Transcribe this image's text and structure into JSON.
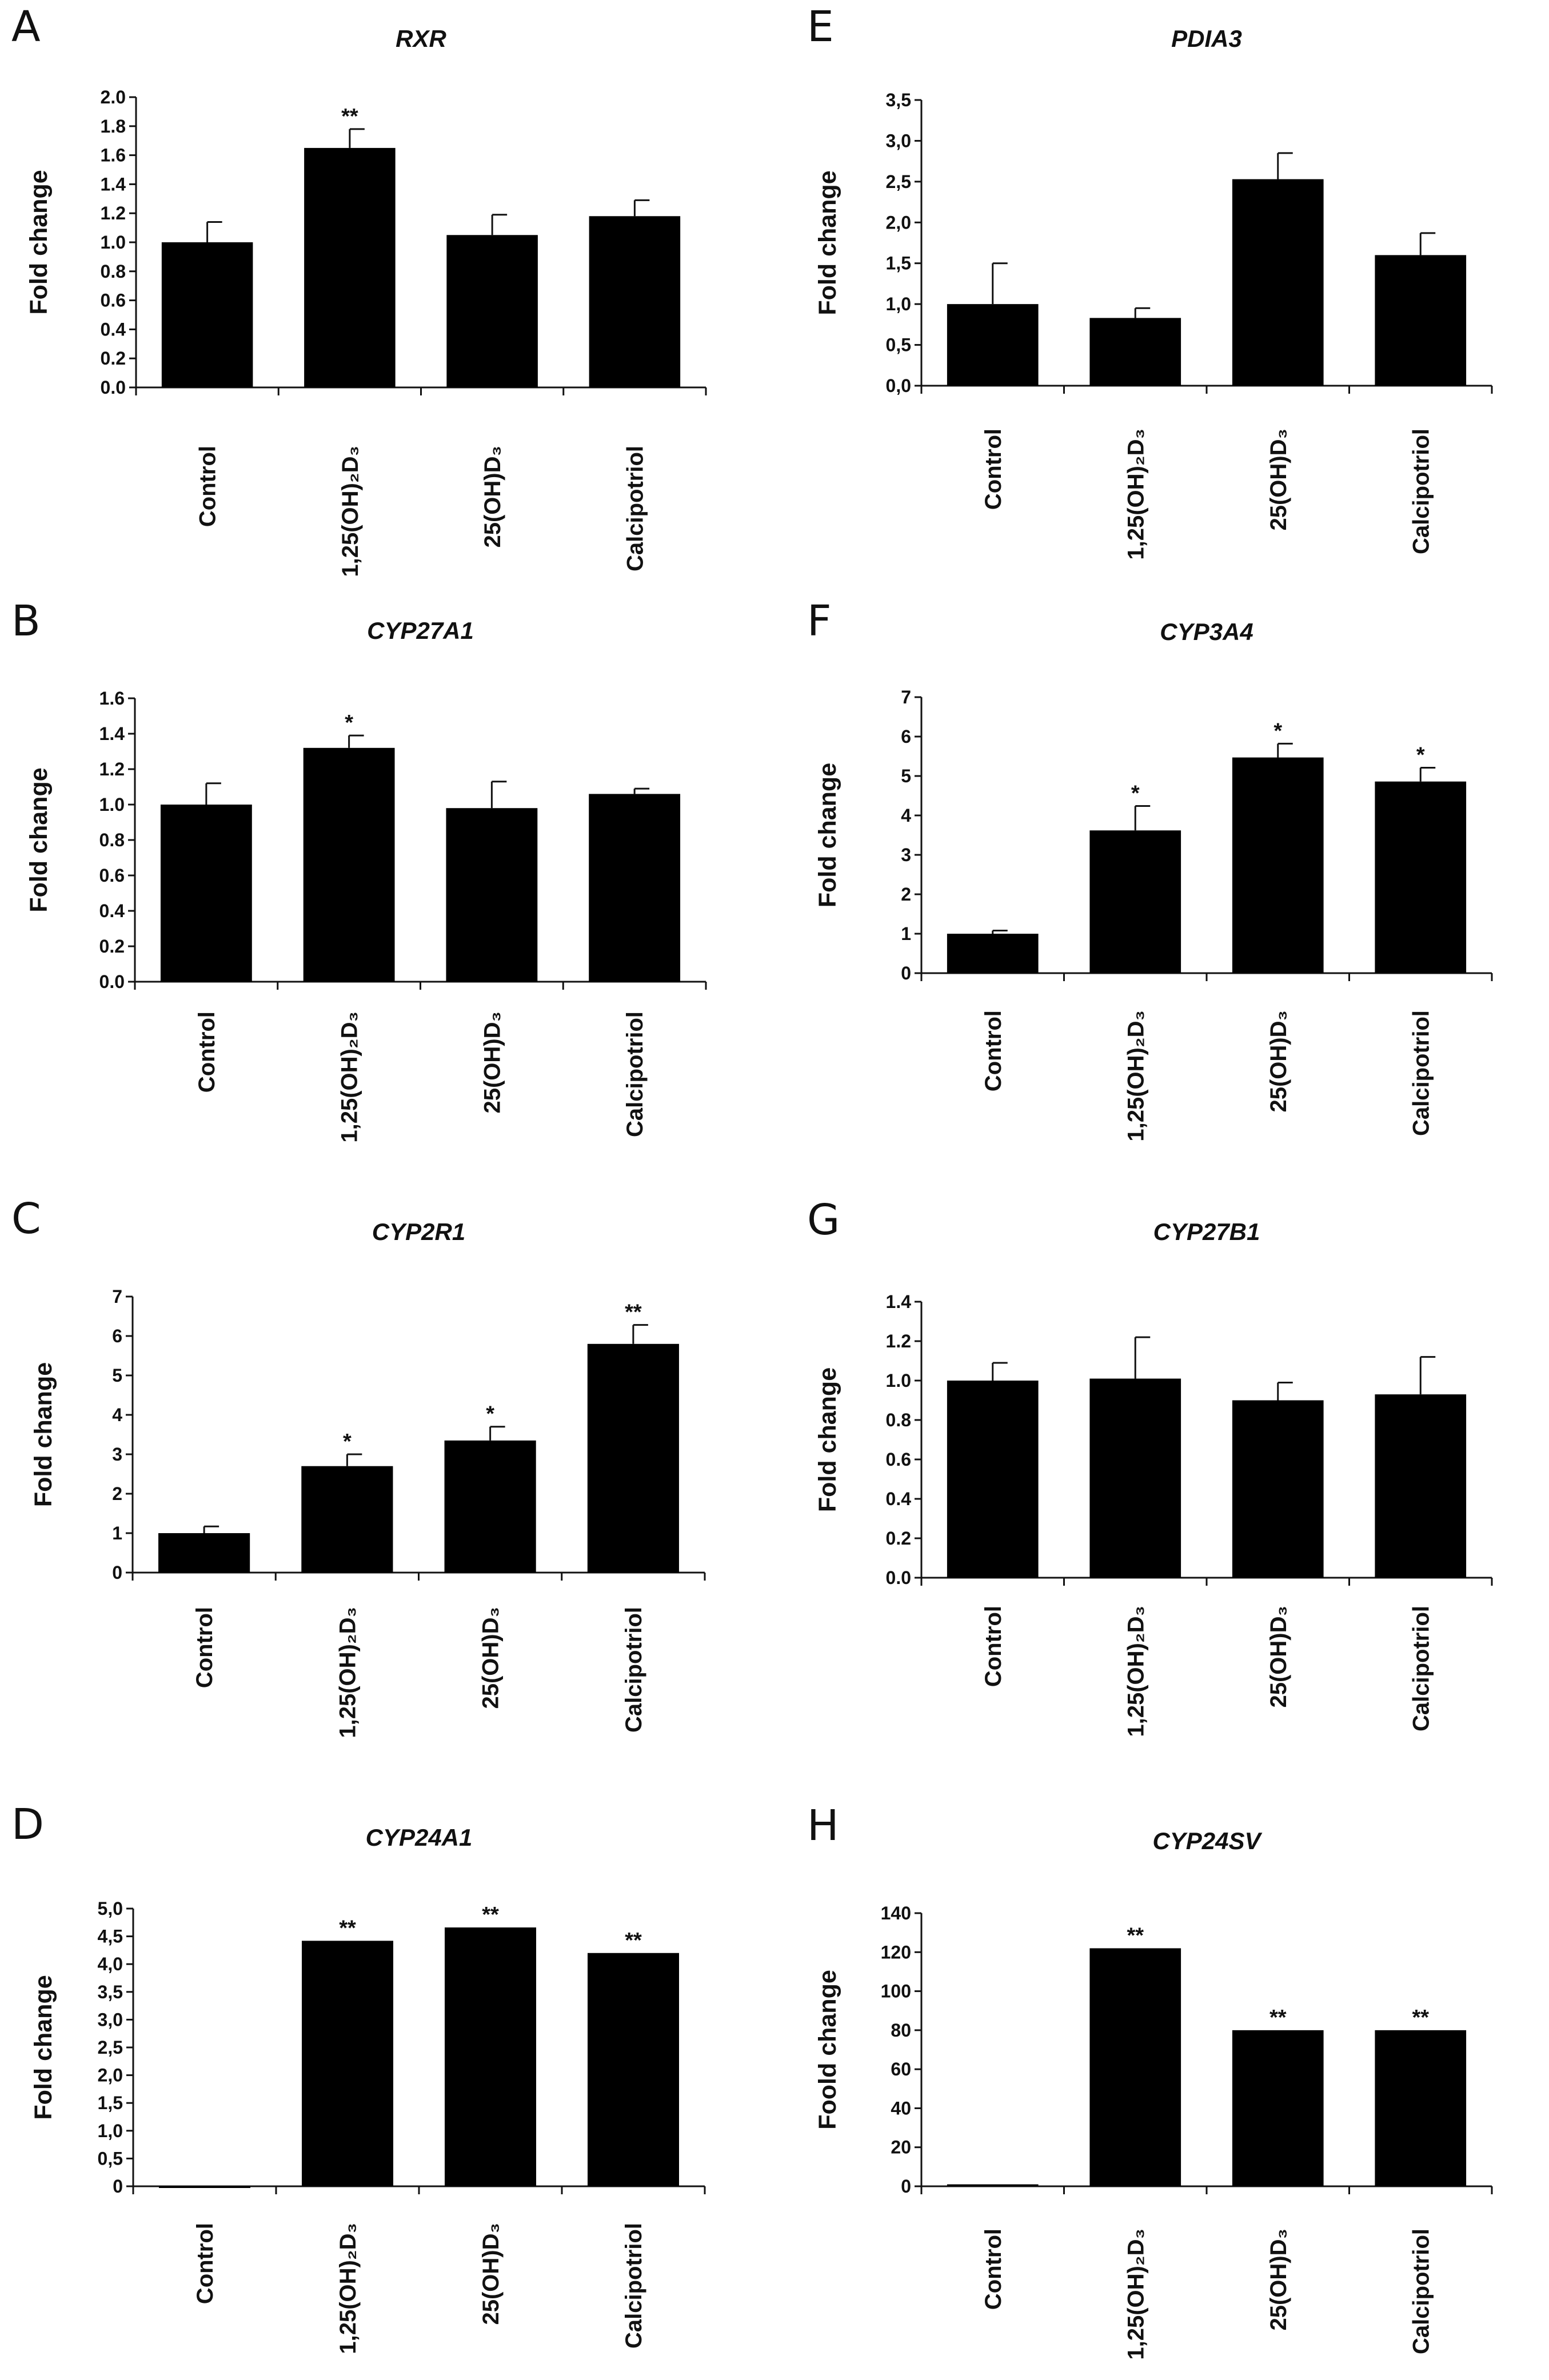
{
  "chart_data": [
    {
      "panel": "A",
      "type": "bar",
      "title": "RXR",
      "ylabel": "Fold change",
      "categories": [
        "Control",
        "1,25(OH)₂D₃",
        "25(OH)D₃",
        "Calcipotriol"
      ],
      "values": [
        1.0,
        1.65,
        1.05,
        1.18
      ],
      "errors": [
        0.14,
        0.13,
        0.14,
        0.11
      ],
      "significance": [
        "",
        "**",
        "",
        ""
      ],
      "ylim": [
        0,
        2.0
      ],
      "yticks": [
        "0.0",
        "0.2",
        "0.4",
        "0.6",
        "0.8",
        "1.0",
        "1.2",
        "1.4",
        "1.6",
        "1.8",
        "2.0"
      ]
    },
    {
      "panel": "B",
      "type": "bar",
      "title": "CYP27A1",
      "ylabel": "Fold change",
      "categories": [
        "Control",
        "1,25(OH)₂D₃",
        "25(OH)D₃",
        "Calcipotriol"
      ],
      "values": [
        1.0,
        1.32,
        0.98,
        1.06
      ],
      "errors": [
        0.12,
        0.07,
        0.15,
        0.03
      ],
      "significance": [
        "",
        "*",
        "",
        ""
      ],
      "ylim": [
        0,
        1.6
      ],
      "yticks": [
        "0.0",
        "0.2",
        "0.4",
        "0.6",
        "0.8",
        "1.0",
        "1.2",
        "1.4",
        "1.6"
      ]
    },
    {
      "panel": "C",
      "type": "bar",
      "title": "CYP2R1",
      "ylabel": "Fold change",
      "categories": [
        "Control",
        "1,25(OH)₂D₃",
        "25(OH)D₃",
        "Calcipotriol"
      ],
      "values": [
        1.0,
        2.7,
        3.35,
        5.8
      ],
      "errors": [
        0.17,
        0.3,
        0.35,
        0.48
      ],
      "significance": [
        "",
        "*",
        "*",
        "**"
      ],
      "ylim": [
        0,
        7
      ],
      "yticks": [
        "0",
        "1",
        "2",
        "3",
        "4",
        "5",
        "6",
        "7"
      ]
    },
    {
      "panel": "D",
      "type": "bar",
      "title": "CYP24A1",
      "ylabel": "Fold change",
      "categories": [
        "Control",
        "1,25(OH)₂D₃",
        "25(OH)D₃",
        "Calcipotriol"
      ],
      "values": [
        0.0,
        4.42,
        4.66,
        4.2
      ],
      "errors": [
        0,
        0,
        0,
        0
      ],
      "significance": [
        "",
        "**",
        "**",
        "**"
      ],
      "ylim": [
        0,
        5.0
      ],
      "yticks": [
        "0",
        "0,5",
        "1,0",
        "1,5",
        "2,0",
        "2,5",
        "3,0",
        "3,5",
        "4,0",
        "4,5",
        "5,0"
      ]
    },
    {
      "panel": "E",
      "type": "bar",
      "title": "PDIA3",
      "ylabel": "Fold change",
      "categories": [
        "Control",
        "1,25(OH)₂D₃",
        "25(OH)D₃",
        "Calcipotriol"
      ],
      "values": [
        1.0,
        0.83,
        2.53,
        1.6
      ],
      "errors": [
        0.5,
        0.12,
        0.32,
        0.27
      ],
      "significance": [
        "",
        "",
        "",
        ""
      ],
      "ylim": [
        0,
        3.5
      ],
      "yticks": [
        "0,0",
        "0,5",
        "1,0",
        "1,5",
        "2,0",
        "2,5",
        "3,0",
        "3,5"
      ]
    },
    {
      "panel": "F",
      "type": "bar",
      "title": "CYP3A4",
      "ylabel": "Fold change",
      "categories": [
        "Control",
        "1,25(OH)₂D₃",
        "25(OH)D₃",
        "Calcipotriol"
      ],
      "values": [
        1.0,
        3.62,
        5.47,
        4.86
      ],
      "errors": [
        0.08,
        0.62,
        0.35,
        0.35
      ],
      "significance": [
        "",
        "*",
        "*",
        "*"
      ],
      "ylim": [
        0,
        7
      ],
      "yticks": [
        "0",
        "1",
        "2",
        "3",
        "4",
        "5",
        "6",
        "7"
      ]
    },
    {
      "panel": "G",
      "type": "bar",
      "title": "CYP27B1",
      "ylabel": "Fold change",
      "categories": [
        "Control",
        "1,25(OH)₂D₃",
        "25(OH)D₃",
        "Calcipotriol"
      ],
      "values": [
        1.0,
        1.01,
        0.9,
        0.93
      ],
      "errors": [
        0.09,
        0.21,
        0.09,
        0.19
      ],
      "significance": [
        "",
        "",
        "",
        ""
      ],
      "ylim": [
        0,
        1.4
      ],
      "yticks": [
        "0.0",
        "0.2",
        "0.4",
        "0.6",
        "0.8",
        "1.0",
        "1.2",
        "1.4"
      ]
    },
    {
      "panel": "H",
      "type": "bar",
      "title": "CYP24SV",
      "ylabel": "Foold change",
      "categories": [
        "Control",
        "1,25(OH)₂D₃",
        "25(OH)D₃",
        "Calcipotriol"
      ],
      "values": [
        1.0,
        122,
        80,
        80
      ],
      "errors": [
        0,
        0,
        0,
        0
      ],
      "significance": [
        "",
        "**",
        "**",
        "**"
      ],
      "ylim": [
        0,
        140
      ],
      "yticks": [
        "0",
        "20",
        "40",
        "60",
        "80",
        "100",
        "120",
        "140"
      ]
    }
  ]
}
